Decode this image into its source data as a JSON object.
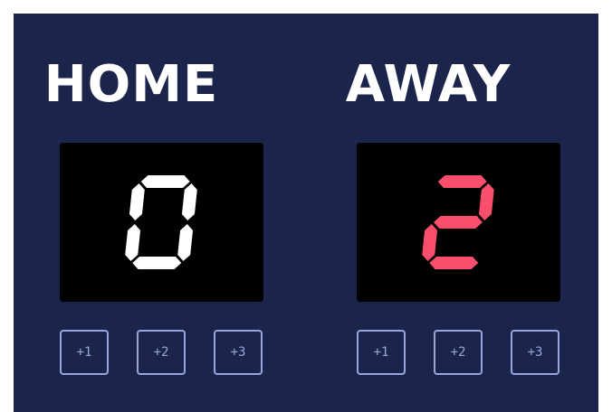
{
  "home": {
    "label": "HOME",
    "score": 0,
    "score_color": "#ffffff",
    "buttons": [
      "+1",
      "+2",
      "+3"
    ]
  },
  "away": {
    "label": "AWAY",
    "score": 2,
    "score_color": "#f94f6d",
    "buttons": [
      "+1",
      "+2",
      "+3"
    ]
  },
  "colors": {
    "panel": "#1b244a",
    "screen": "#000000",
    "button_border": "#9aa6da"
  }
}
